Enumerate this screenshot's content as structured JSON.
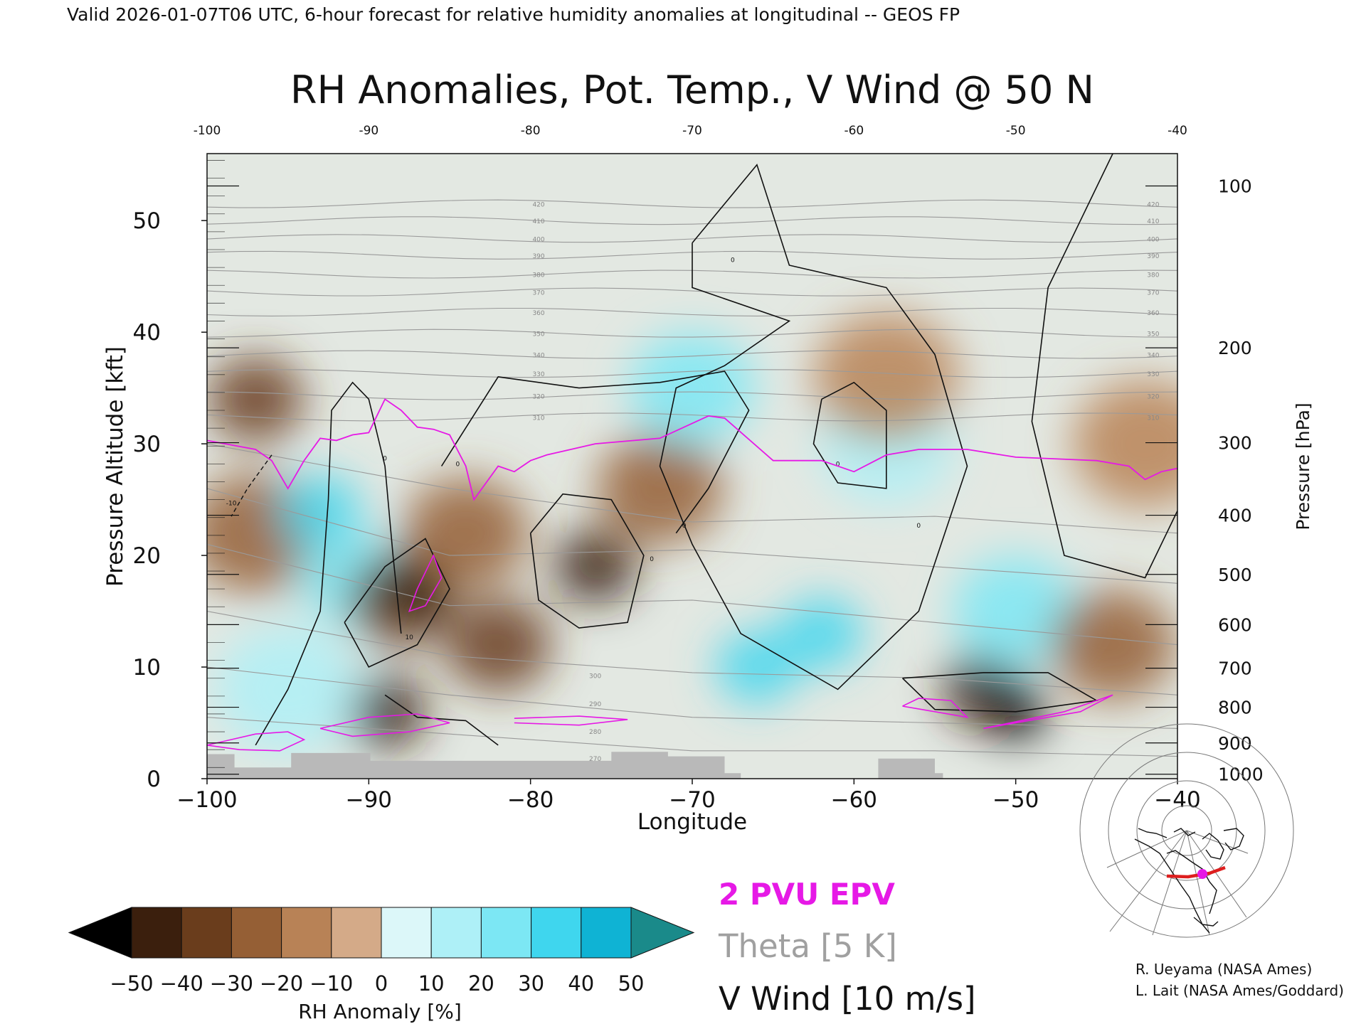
{
  "header": "Valid 2026-01-07T06 UTC, 6-hour forecast for relative humidity anomalies at longitudinal -- GEOS FP",
  "chart_data": {
    "type": "heatmap",
    "title": "RH Anomalies, Pot. Temp., V Wind @ 50 N",
    "xlabel": "Longitude",
    "ylabel_left": "Pressure Altitude [kft]",
    "ylabel_right": "Pressure [hPa]",
    "xlim": [
      -100,
      -40
    ],
    "ylim": [
      0,
      56
    ],
    "x_ticks": [
      -100,
      -90,
      -80,
      -70,
      -60,
      -50,
      -40
    ],
    "x_tick_labels": [
      "−100",
      "−90",
      "−80",
      "−70",
      "−60",
      "−50",
      "−40"
    ],
    "top_tick_labels": [
      "-100",
      "-90",
      "-80",
      "-70",
      "-60",
      "-50",
      "-40"
    ],
    "y_ticks": [
      0,
      10,
      20,
      30,
      40,
      50
    ],
    "y_tick_labels": [
      "0",
      "10",
      "20",
      "30",
      "40",
      "50"
    ],
    "pressure_ticks": [
      {
        "label": "100",
        "kft": 53.1
      },
      {
        "label": "200",
        "kft": 38.6
      },
      {
        "label": "300",
        "kft": 30.1
      },
      {
        "label": "400",
        "kft": 23.6
      },
      {
        "label": "500",
        "kft": 18.3
      },
      {
        "label": "600",
        "kft": 13.8
      },
      {
        "label": "700",
        "kft": 9.9
      },
      {
        "label": "800",
        "kft": 6.4
      },
      {
        "label": "900",
        "kft": 3.2
      },
      {
        "label": "1000",
        "kft": 0.4
      }
    ],
    "theta_contour_labels": [
      "420",
      "410",
      "400",
      "390",
      "380",
      "370",
      "360",
      "350",
      "340",
      "330",
      "320",
      "310",
      "300",
      "290",
      "280",
      "270"
    ],
    "vwind_contour_labels": [
      "0",
      "-10",
      "10"
    ],
    "rh_anomaly_field": [
      {
        "lon": -97,
        "kft": 34,
        "anom": -40
      },
      {
        "lon": -97,
        "kft": 22,
        "anom": -25
      },
      {
        "lon": -93,
        "kft": 24,
        "anom": 45
      },
      {
        "lon": -91,
        "kft": 18,
        "anom": 35
      },
      {
        "lon": -88,
        "kft": 16,
        "anom": -35
      },
      {
        "lon": -87,
        "kft": 17,
        "anom": -50
      },
      {
        "lon": -84,
        "kft": 22,
        "anom": -30
      },
      {
        "lon": -82,
        "kft": 12,
        "anom": -35
      },
      {
        "lon": -76,
        "kft": 19,
        "anom": -45
      },
      {
        "lon": -72,
        "kft": 26,
        "anom": -30
      },
      {
        "lon": -70,
        "kft": 35,
        "anom": 30
      },
      {
        "lon": -66,
        "kft": 10,
        "anom": 45
      },
      {
        "lon": -62,
        "kft": 13,
        "anom": 45
      },
      {
        "lon": -58,
        "kft": 30,
        "anom": 25
      },
      {
        "lon": -58,
        "kft": 36,
        "anom": -20
      },
      {
        "lon": -52,
        "kft": 8,
        "anom": -45
      },
      {
        "lon": -50,
        "kft": 6,
        "anom": -50
      },
      {
        "lon": -50,
        "kft": 15,
        "anom": 30
      },
      {
        "lon": -44,
        "kft": 12,
        "anom": -30
      },
      {
        "lon": -42,
        "kft": 30,
        "anom": -20
      },
      {
        "lon": -89,
        "kft": 6,
        "anom": -45
      },
      {
        "lon": -95,
        "kft": 8,
        "anom": 20
      }
    ],
    "epv_2pvu_kft": [
      [
        -100,
        30.3
      ],
      [
        -97,
        29.5
      ],
      [
        -96,
        28.5
      ],
      [
        -95,
        26.0
      ],
      [
        -94,
        28.5
      ],
      [
        -93,
        30.5
      ],
      [
        -92,
        30.3
      ],
      [
        -91,
        30.8
      ],
      [
        -90,
        31.0
      ],
      [
        -89,
        34.0
      ],
      [
        -88,
        33.0
      ],
      [
        -87,
        31.5
      ],
      [
        -86,
        31.3
      ],
      [
        -85,
        30.8
      ],
      [
        -84,
        28.0
      ],
      [
        -83.5,
        25.0
      ],
      [
        -82,
        28.0
      ],
      [
        -81,
        27.5
      ],
      [
        -80,
        28.5
      ],
      [
        -79,
        29.0
      ],
      [
        -76,
        30.0
      ],
      [
        -72,
        30.5
      ],
      [
        -69,
        32.5
      ],
      [
        -68,
        32.3
      ],
      [
        -65,
        28.5
      ],
      [
        -62,
        28.5
      ],
      [
        -60,
        27.5
      ],
      [
        -58,
        29.0
      ],
      [
        -56,
        29.5
      ],
      [
        -53,
        29.5
      ],
      [
        -50,
        28.8
      ],
      [
        -45,
        28.5
      ],
      [
        -43,
        28.0
      ],
      [
        -42,
        26.8
      ],
      [
        -41,
        27.5
      ],
      [
        -40,
        27.8
      ]
    ],
    "vwind_zero_kft": [
      [
        -97,
        3.0
      ],
      [
        -95,
        8.0
      ],
      [
        -93,
        15.0
      ],
      [
        -92.5,
        25.0
      ],
      [
        -92.3,
        33.0
      ],
      [
        -91,
        35.5
      ],
      [
        -90,
        34.0
      ],
      [
        -89,
        28.0
      ],
      [
        -88.5,
        20.0
      ],
      [
        -88,
        13.0
      ]
    ],
    "terrain": [
      {
        "lon": -100,
        "kft": 2.2
      },
      {
        "lon": -98.3,
        "kft": 1.0
      },
      {
        "lon": -94.8,
        "kft": 2.3
      },
      {
        "lon": -89.9,
        "kft": 1.6
      },
      {
        "lon": -84,
        "kft": 1.6
      },
      {
        "lon": -75,
        "kft": 2.4
      },
      {
        "lon": -71.5,
        "kft": 2.0
      },
      {
        "lon": -68,
        "kft": 0.5
      },
      {
        "lon": -67,
        "kft": 0
      },
      {
        "lon": -58.5,
        "kft": 1.8
      },
      {
        "lon": -55,
        "kft": 0.5
      }
    ]
  },
  "colorbar": {
    "label": "RH Anomaly [%]",
    "ticks": [
      "−50",
      "−40",
      "−30",
      "−20",
      "−10",
      "0",
      "10",
      "20",
      "30",
      "40",
      "50"
    ],
    "colors": [
      "#000000",
      "#3b1f0d",
      "#6a3d1c",
      "#955f35",
      "#b88256",
      "#d4aa88",
      "#ecdcd0",
      "#dcf7f9",
      "#aef0f7",
      "#7ce7f4",
      "#3fd6ee",
      "#0fb3d4",
      "#0a7a96",
      "#1a8a8a"
    ]
  },
  "legend": {
    "epv": "2 PVU EPV",
    "theta": "Theta [5 K]",
    "vwind": "V Wind [10 m/s]",
    "colors": {
      "epv": "#e619e6",
      "theta": "#a0a0a0",
      "vwind": "#111111"
    }
  },
  "credits": {
    "line1": "R. Ueyama (NASA Ames)",
    "line2": "L. Lait (NASA Ames/Goddard)"
  }
}
